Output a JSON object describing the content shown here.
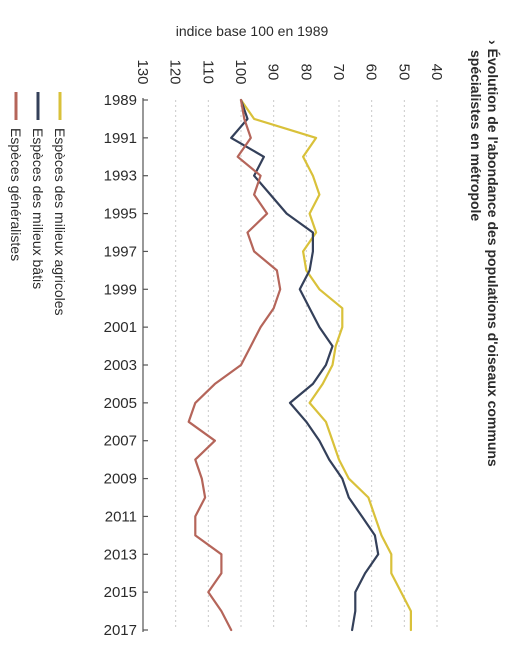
{
  "chart_data": {
    "type": "line",
    "title": "Évolution de l'abondance des populations d'oiseaux communs spécialistes en métropole",
    "ylabel": "indice base 100 en 1989",
    "ylim": [
      40,
      130
    ],
    "yticks": [
      40,
      50,
      60,
      70,
      80,
      90,
      100,
      110,
      120,
      130
    ],
    "xlim": [
      1989,
      2017
    ],
    "xticks": [
      1989,
      1991,
      1993,
      1995,
      1997,
      1999,
      2001,
      2003,
      2005,
      2007,
      2009,
      2011,
      2013,
      2015,
      2017
    ],
    "grid": true,
    "legend_position": "bottom",
    "x": [
      1989,
      1990,
      1991,
      1992,
      1993,
      1994,
      1995,
      1996,
      1997,
      1998,
      1999,
      2000,
      2001,
      2002,
      2003,
      2004,
      2005,
      2006,
      2007,
      2008,
      2009,
      2010,
      2011,
      2012,
      2013,
      2014,
      2015,
      2016,
      2017
    ],
    "series": [
      {
        "name": "Espèces des milieux agricoles",
        "color": "#d9c13a",
        "values": [
          100,
          96,
          77,
          81,
          78,
          76,
          79,
          77,
          81,
          80,
          76,
          69,
          69,
          71,
          72,
          75,
          79,
          74,
          72,
          70,
          67,
          61,
          59,
          57,
          54,
          54,
          51,
          48,
          48
        ]
      },
      {
        "name": "Espèces des milieux bâtis",
        "color": "#34405a",
        "values": [
          100,
          98,
          103,
          93,
          96,
          91,
          86,
          78,
          78,
          79,
          82,
          79,
          76,
          72,
          74,
          78,
          85,
          80,
          76,
          73,
          69,
          67,
          63,
          59,
          58,
          62,
          65,
          65,
          66
        ]
      },
      {
        "name": "Espèces généralistes",
        "color": "#b5655a",
        "values": [
          100,
          99,
          97,
          101,
          94,
          96,
          92,
          98,
          96,
          89,
          88,
          90,
          94,
          97,
          100,
          108,
          114,
          116,
          108,
          114,
          112,
          111,
          114,
          114,
          106,
          106,
          110,
          106,
          103
        ]
      }
    ]
  }
}
